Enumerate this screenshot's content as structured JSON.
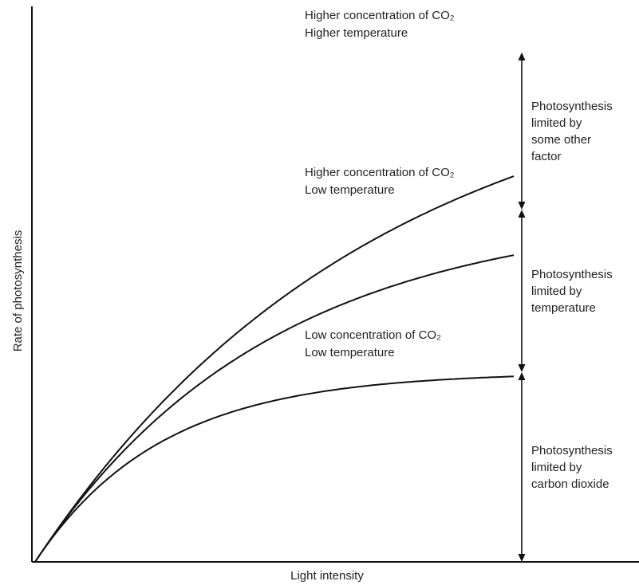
{
  "chart_data": {
    "type": "line",
    "xlabel": "Light intensity",
    "ylabel": "Rate of photosynthesis",
    "xlim": [
      0,
      100
    ],
    "ylim": [
      0,
      100
    ],
    "grid": false,
    "ticks": false,
    "series": [
      {
        "name_lines": [
          "Higher concentration of CO₂",
          "Higher temperature"
        ],
        "initial_slope": 1.33,
        "plateau": 94,
        "x_end": 100,
        "color": "#111111"
      },
      {
        "name_lines": [
          "Higher concentration of CO₂",
          "Low temperature"
        ],
        "initial_slope": 1.33,
        "plateau": 65,
        "x_end": 100,
        "color": "#111111"
      },
      {
        "name_lines": [
          "Low concentration of CO₂",
          "Low temperature"
        ],
        "initial_slope": 1.33,
        "plateau": 35,
        "x_end": 100,
        "color": "#111111"
      }
    ],
    "limit_regions": [
      {
        "from": 65,
        "to": 94,
        "label_lines": [
          "Photosynthesis",
          "limited by",
          "some other",
          "factor"
        ]
      },
      {
        "from": 35,
        "to": 65,
        "label_lines": [
          "Photosynthesis",
          "limited by",
          "temperature"
        ]
      },
      {
        "from": 0,
        "to": 35,
        "label_lines": [
          "Photosynthesis",
          "limited by",
          "carbon dioxide"
        ]
      }
    ]
  }
}
